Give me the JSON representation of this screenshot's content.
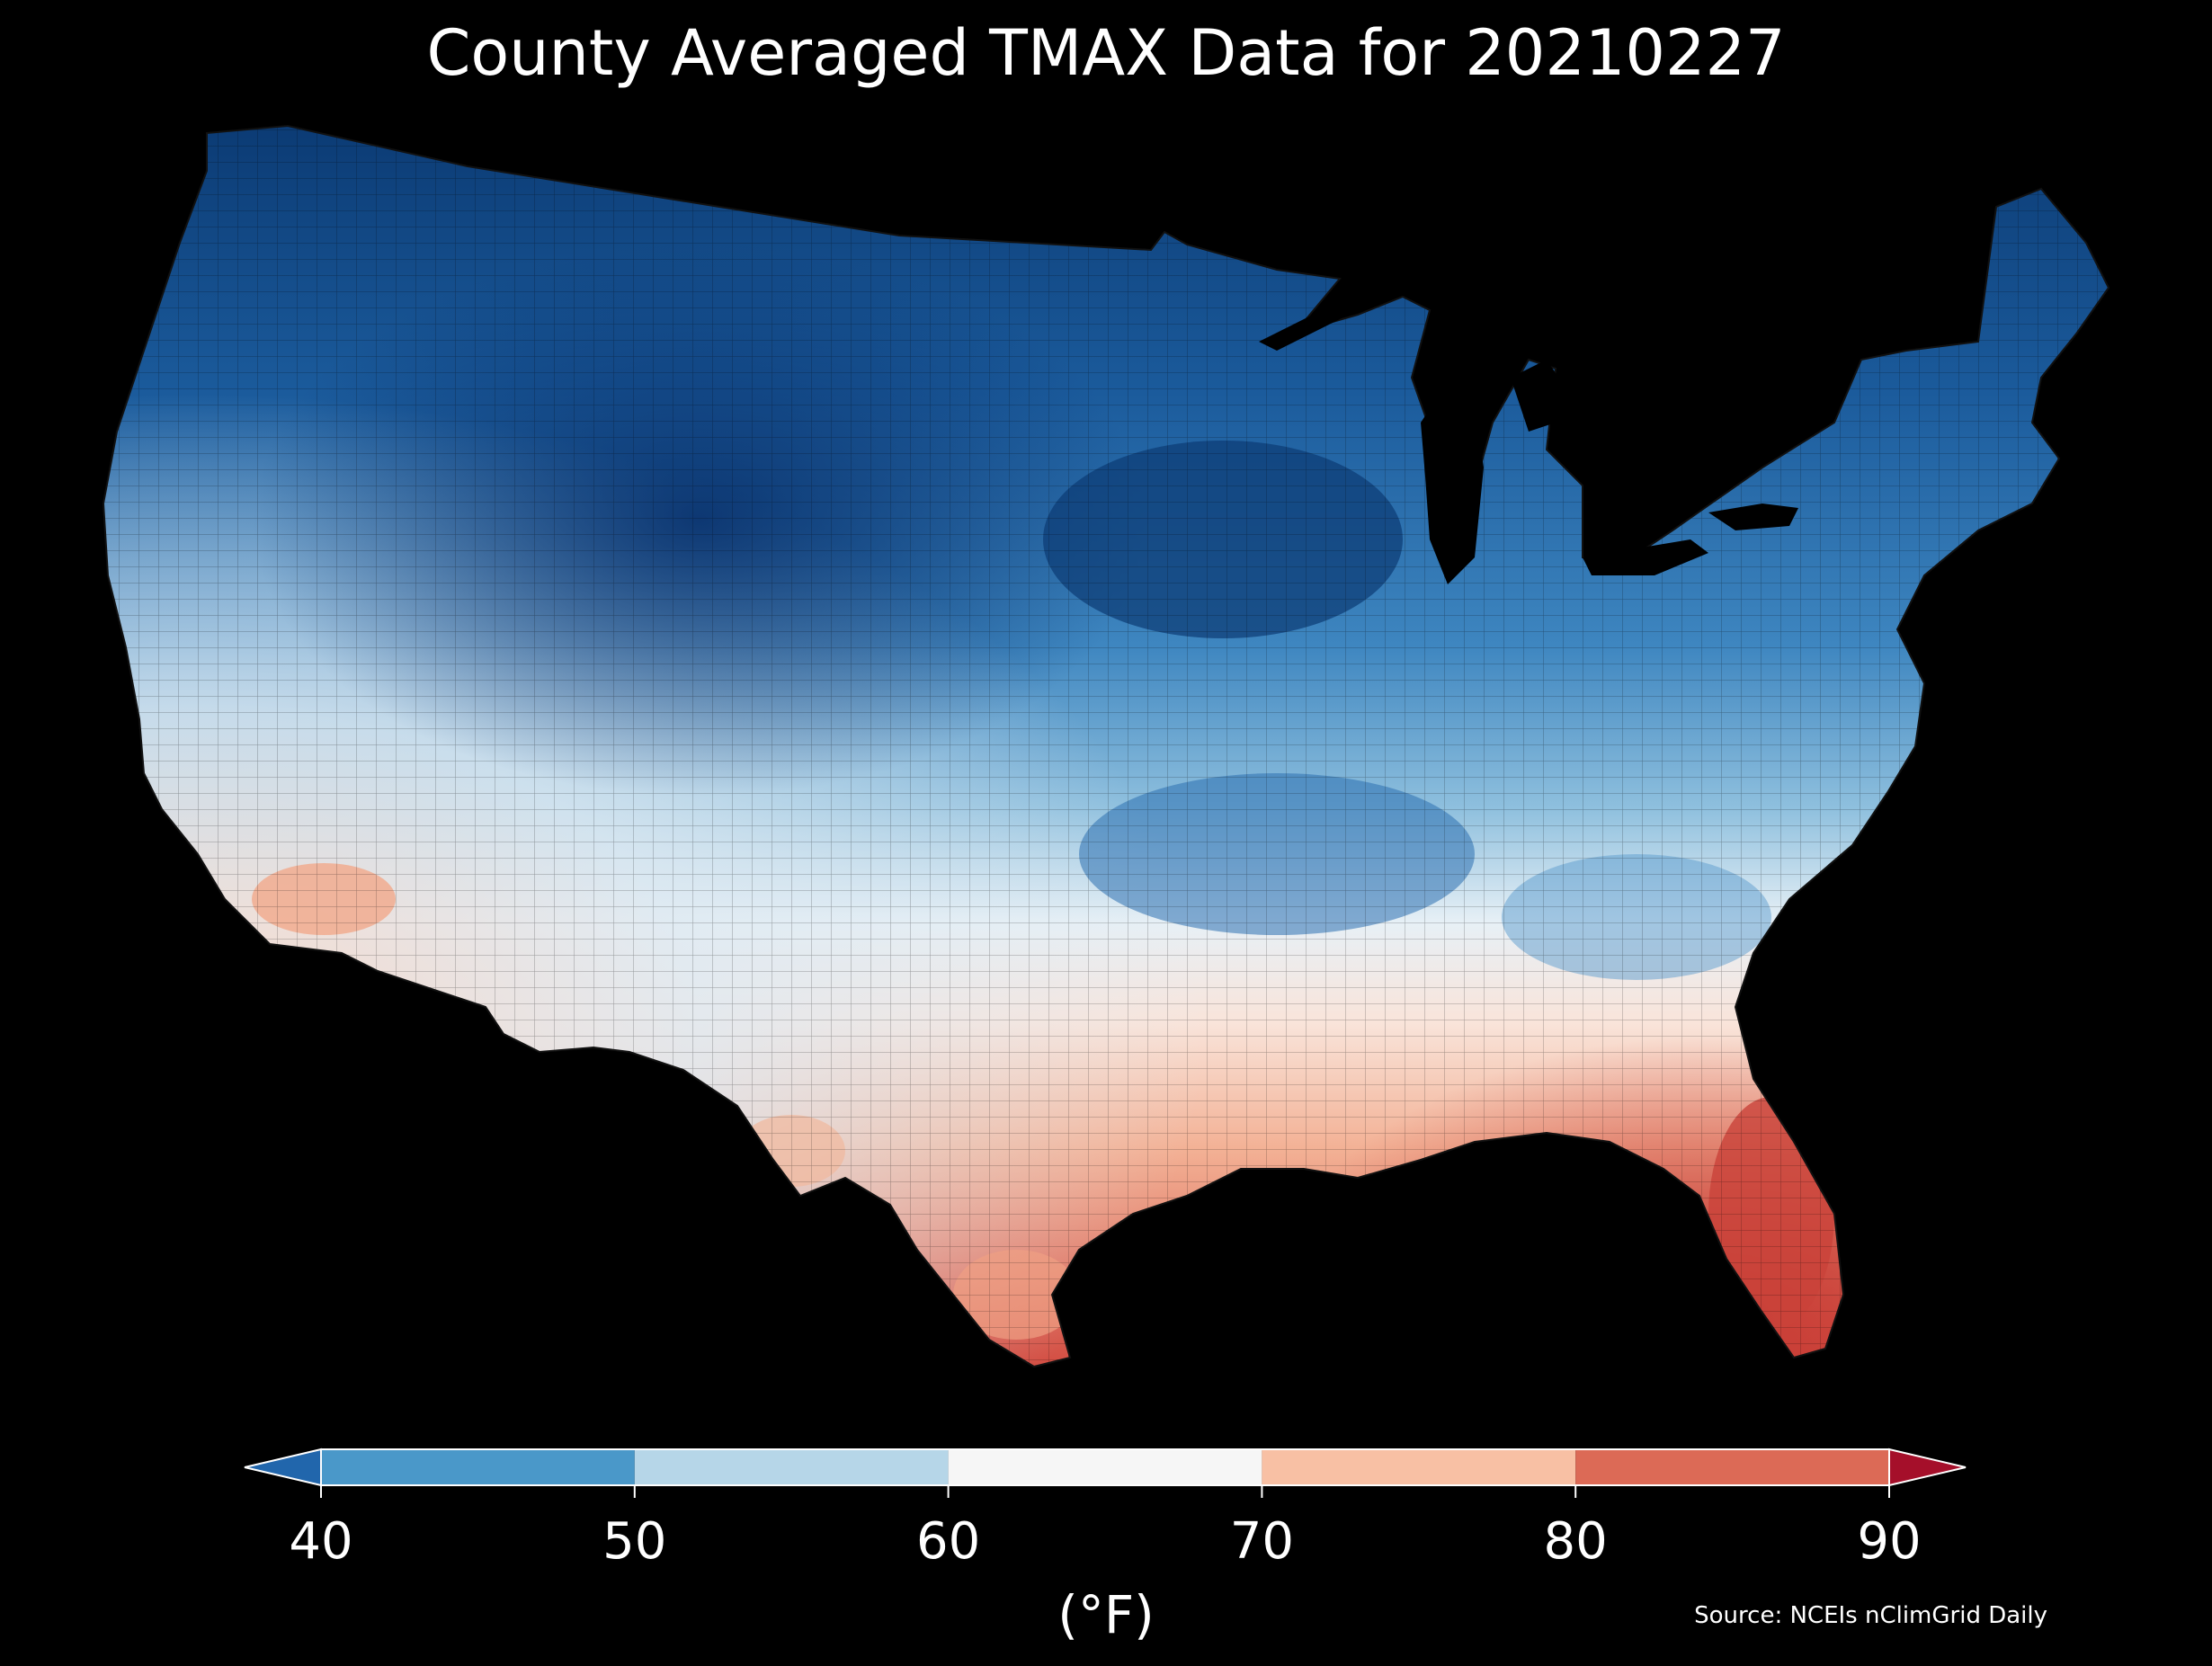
{
  "title": "County Averaged TMAX Data for 20210227",
  "units_label": "(°F)",
  "source": "Source: NCEIs nClimGrid Daily",
  "colorbar": {
    "ticks": [
      "40",
      "50",
      "60",
      "70",
      "80",
      "90"
    ],
    "under_color": "#2166ac",
    "over_color": "#a50f2a",
    "bins": [
      {
        "from": 40,
        "to": 50,
        "color": "#4a98c9"
      },
      {
        "from": 50,
        "to": 60,
        "color": "#b6d6e8"
      },
      {
        "from": 60,
        "to": 70,
        "color": "#f6f6f6"
      },
      {
        "from": 70,
        "to": 80,
        "color": "#f8c0a4"
      },
      {
        "from": 80,
        "to": 90,
        "color": "#dc6a56"
      }
    ]
  },
  "map": {
    "region": "Contiguous United States counties",
    "background": "#000000",
    "legend_position": "bottom"
  }
}
